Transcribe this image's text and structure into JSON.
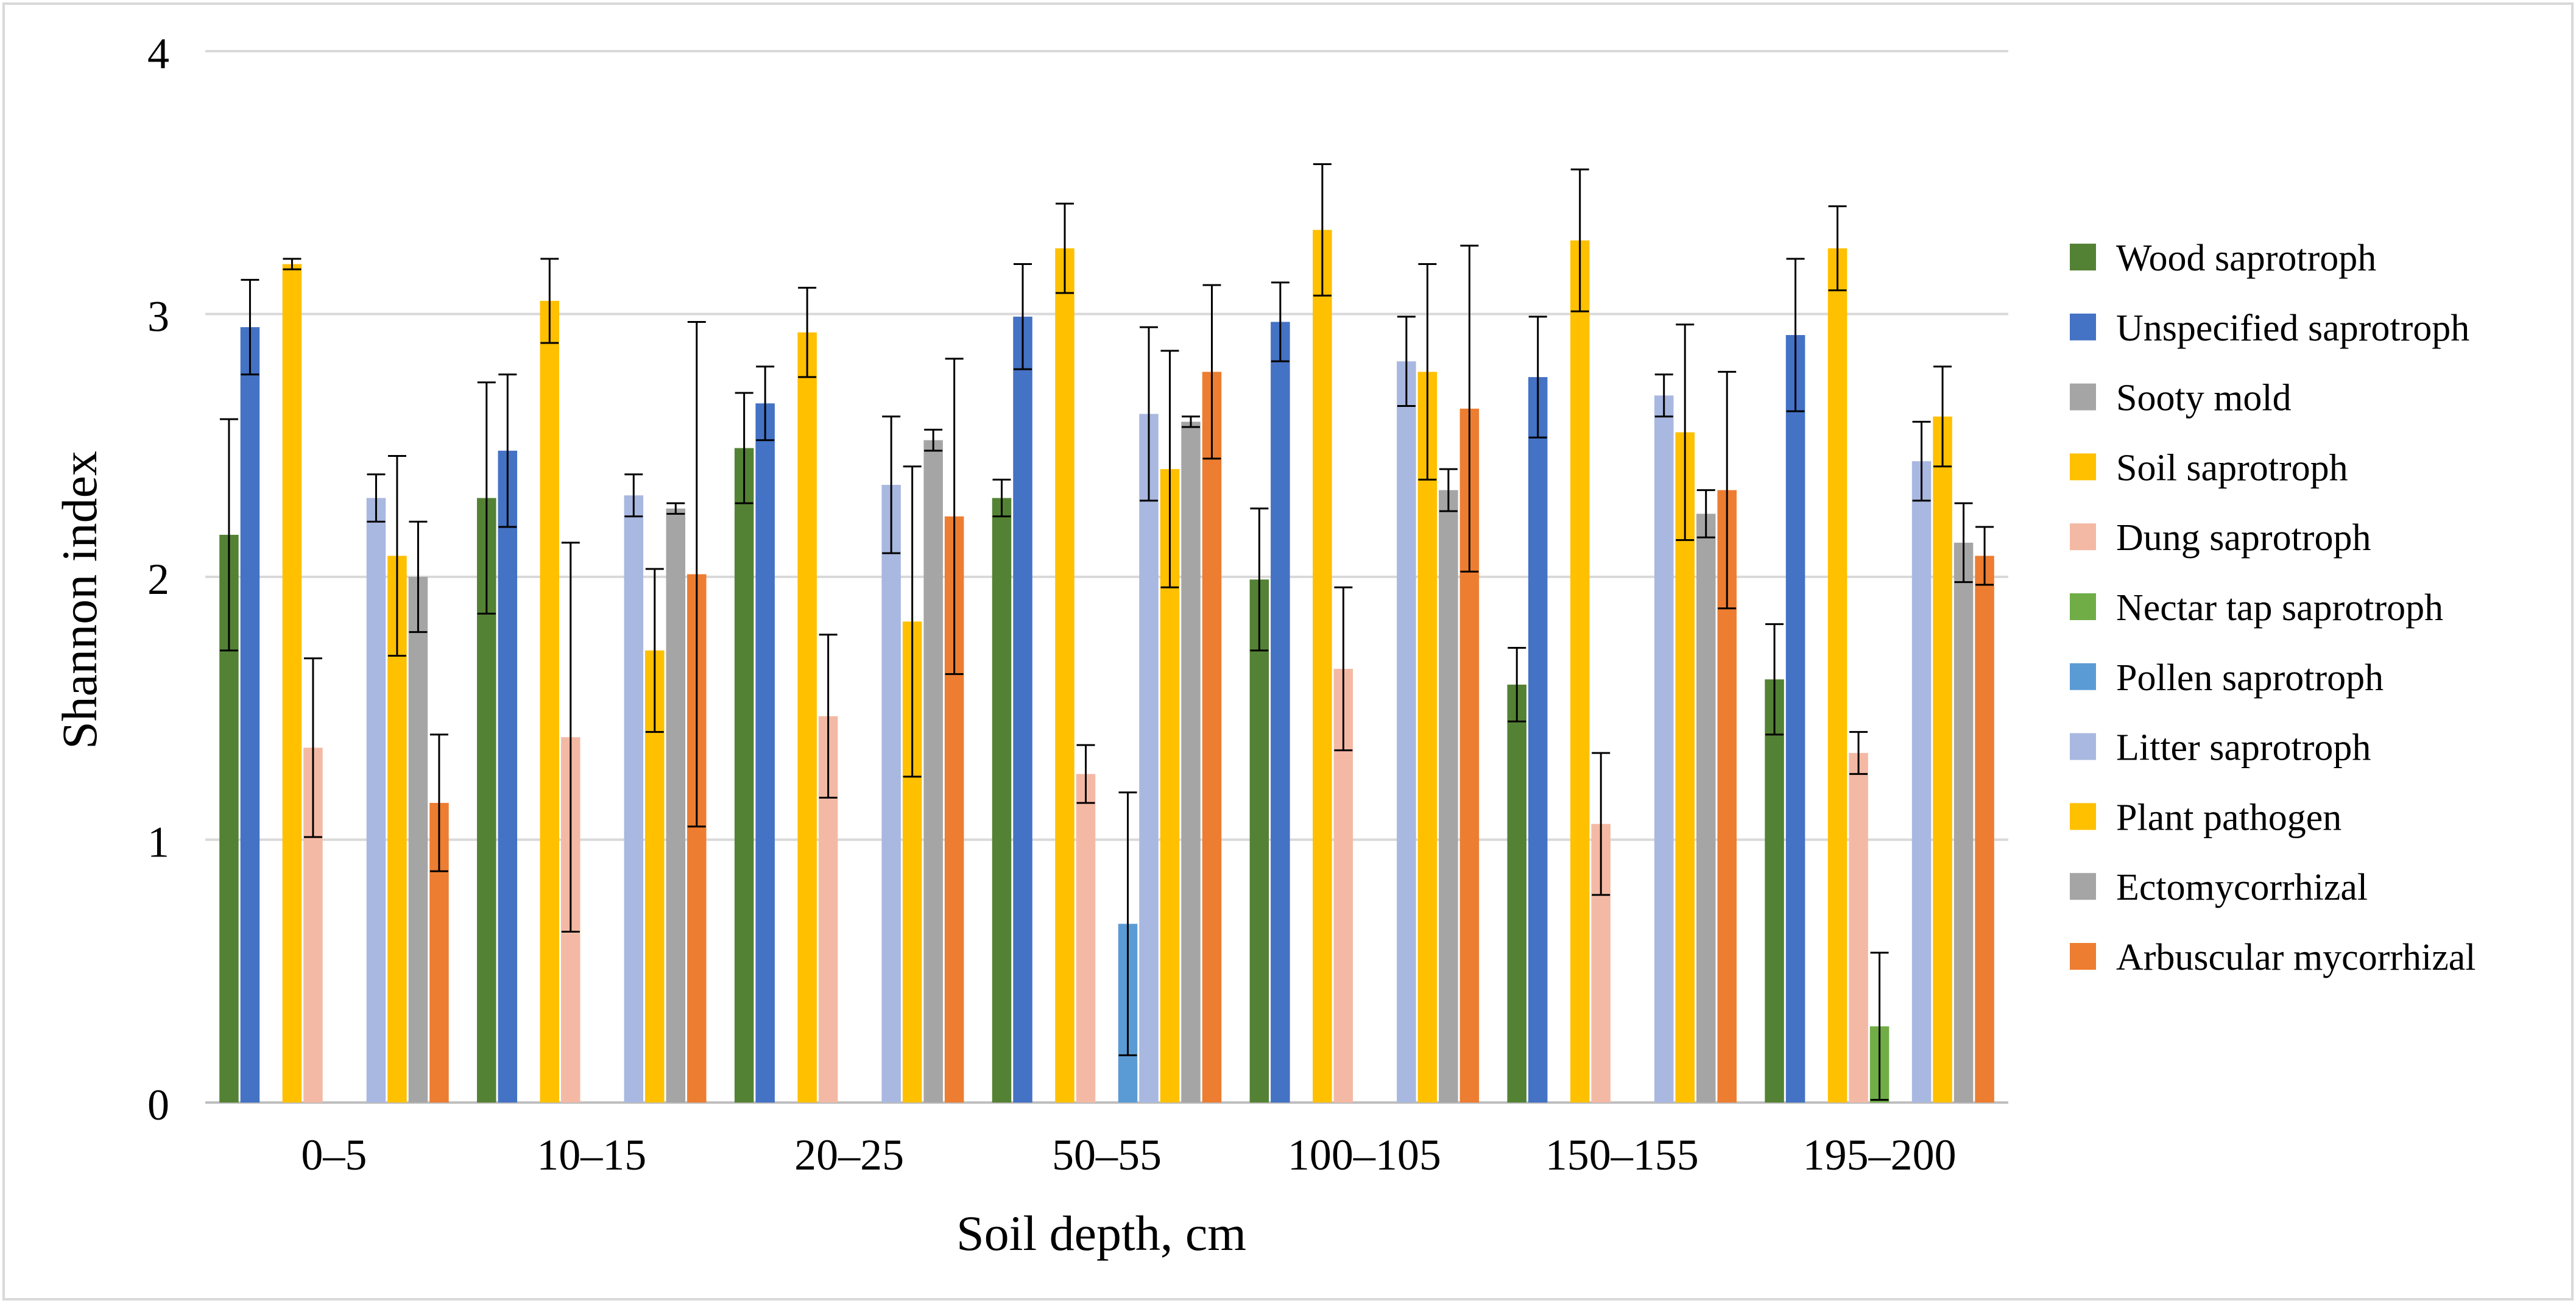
{
  "chart_data": {
    "type": "bar",
    "title": "",
    "xlabel": "Soil depth, cm",
    "ylabel": "Shannon index",
    "ylim": [
      0,
      4
    ],
    "yticks": [
      "0",
      "1",
      "2",
      "3",
      "4"
    ],
    "grid": true,
    "legend_position": "right",
    "error_bars": true,
    "categories": [
      "0–5",
      "10–15",
      "20–25",
      "50–55",
      "100–105",
      "150–155",
      "195–200"
    ],
    "series": [
      {
        "name": "Wood saprotroph",
        "color": "#548235",
        "values": [
          2.16,
          2.3,
          2.49,
          2.3,
          1.99,
          1.59,
          1.61
        ],
        "errors": [
          0.44,
          0.44,
          0.21,
          0.07,
          0.27,
          0.14,
          0.21
        ]
      },
      {
        "name": "Unspecified saprotroph",
        "color": "#4472C4",
        "values": [
          2.95,
          2.48,
          2.66,
          2.99,
          2.97,
          2.76,
          2.92
        ],
        "errors": [
          0.18,
          0.29,
          0.14,
          0.2,
          0.15,
          0.23,
          0.29
        ]
      },
      {
        "name": "Sooty mold",
        "color": "#A5A5A5",
        "values": [
          null,
          null,
          null,
          null,
          null,
          null,
          null
        ],
        "errors": [
          null,
          null,
          null,
          null,
          null,
          null,
          null
        ]
      },
      {
        "name": "Soil saprotroph",
        "color": "#FFC000",
        "values": [
          3.19,
          3.05,
          2.93,
          3.25,
          3.32,
          3.28,
          3.25
        ],
        "errors": [
          0.02,
          0.16,
          0.17,
          0.17,
          0.25,
          0.27,
          0.16
        ]
      },
      {
        "name": "Dung saprotroph",
        "color": "#F4B9A4",
        "values": [
          1.35,
          1.39,
          1.47,
          1.25,
          1.65,
          1.06,
          1.33
        ],
        "errors": [
          0.34,
          0.74,
          0.31,
          0.11,
          0.31,
          0.27,
          0.08
        ]
      },
      {
        "name": "Nectar tap saprotroph",
        "color": "#70AD47",
        "values": [
          null,
          null,
          null,
          null,
          null,
          null,
          0.29
        ],
        "errors": [
          null,
          null,
          null,
          null,
          null,
          null,
          0.28
        ]
      },
      {
        "name": "Pollen saprotroph",
        "color": "#5B9BD5",
        "values": [
          null,
          null,
          null,
          0.68,
          null,
          null,
          null
        ],
        "errors": [
          null,
          null,
          null,
          0.5,
          null,
          null,
          null
        ]
      },
      {
        "name": "Litter saprotroph",
        "color": "#A9B8E0",
        "values": [
          2.3,
          2.31,
          2.35,
          2.62,
          2.82,
          2.69,
          2.44
        ],
        "errors": [
          0.09,
          0.08,
          0.26,
          0.33,
          0.17,
          0.08,
          0.15
        ]
      },
      {
        "name": "Plant pathogen",
        "color": "#FFC000",
        "values": [
          2.08,
          1.72,
          1.83,
          2.41,
          2.78,
          2.55,
          2.61
        ],
        "errors": [
          0.38,
          0.31,
          0.59,
          0.45,
          0.41,
          0.41,
          0.19
        ]
      },
      {
        "name": "Ectomycorrhizal",
        "color": "#A5A5A5",
        "values": [
          2.0,
          2.26,
          2.52,
          2.59,
          2.33,
          2.24,
          2.13
        ],
        "errors": [
          0.21,
          0.02,
          0.04,
          0.02,
          0.08,
          0.09,
          0.15
        ]
      },
      {
        "name": "Arbuscular mycorrhizal",
        "color": "#ED7D31",
        "values": [
          1.14,
          2.01,
          2.23,
          2.78,
          2.64,
          2.33,
          2.08
        ],
        "errors": [
          0.26,
          0.96,
          0.6,
          0.33,
          0.62,
          0.45,
          0.11
        ]
      }
    ]
  }
}
